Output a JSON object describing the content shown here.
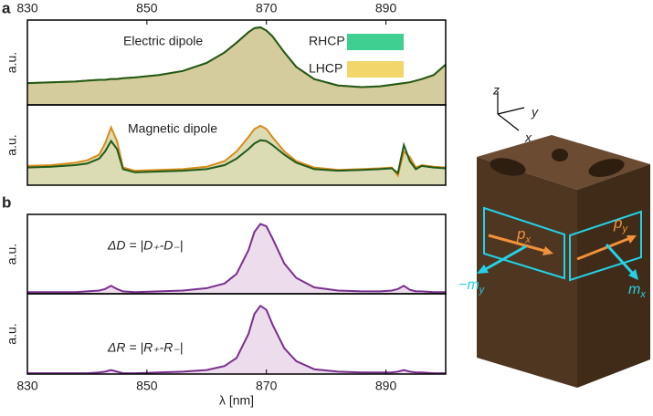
{
  "chart_data": [
    {
      "type": "line",
      "panel": "a",
      "annotation": "Electric dipole",
      "ylabel": "a.u.",
      "xaxis": "top",
      "x": [
        830,
        834,
        838,
        840,
        842,
        843,
        844,
        845,
        846,
        848,
        852,
        856,
        860,
        863,
        865,
        867,
        868,
        869,
        870,
        871,
        873,
        875,
        878,
        882,
        886,
        889,
        891,
        892,
        893,
        894,
        895,
        896,
        898,
        900
      ],
      "fill_color": "#d5cc9e",
      "series": [
        {
          "name": "LHCP",
          "color": "#f2d66a",
          "line_color": "#d98c1a",
          "values": [
            0.27,
            0.28,
            0.29,
            0.3,
            0.31,
            0.31,
            0.32,
            0.32,
            0.33,
            0.34,
            0.37,
            0.42,
            0.52,
            0.65,
            0.77,
            0.9,
            0.95,
            0.96,
            0.92,
            0.85,
            0.65,
            0.47,
            0.32,
            0.24,
            0.22,
            0.23,
            0.25,
            0.26,
            0.27,
            0.28,
            0.3,
            0.32,
            0.37,
            0.5
          ]
        },
        {
          "name": "RHCP",
          "color": "#3fcf90",
          "line_color": "#1f5a1a",
          "values": [
            0.27,
            0.28,
            0.29,
            0.3,
            0.31,
            0.31,
            0.32,
            0.32,
            0.33,
            0.34,
            0.37,
            0.42,
            0.52,
            0.65,
            0.77,
            0.9,
            0.95,
            0.96,
            0.92,
            0.85,
            0.65,
            0.47,
            0.32,
            0.24,
            0.22,
            0.23,
            0.25,
            0.26,
            0.27,
            0.28,
            0.3,
            0.32,
            0.37,
            0.5
          ]
        }
      ],
      "xlim": [
        830,
        900
      ],
      "ylim": [
        0,
        1.05
      ],
      "xticks": [
        830,
        850,
        870,
        890
      ]
    },
    {
      "type": "line",
      "annotation": "Magnetic dipole",
      "ylabel": "a.u.",
      "x": [
        830,
        834,
        838,
        840,
        842,
        843,
        844,
        845,
        846,
        848,
        852,
        856,
        860,
        863,
        865,
        867,
        868,
        869,
        870,
        871,
        873,
        875,
        878,
        882,
        886,
        889,
        891,
        892,
        893,
        894,
        895,
        896,
        898,
        900
      ],
      "fill_color": "#dcdcb4",
      "series": [
        {
          "line_color": "#d98c1a",
          "values": [
            0.24,
            0.25,
            0.28,
            0.31,
            0.38,
            0.52,
            0.72,
            0.55,
            0.22,
            0.18,
            0.19,
            0.2,
            0.23,
            0.3,
            0.42,
            0.6,
            0.7,
            0.74,
            0.7,
            0.6,
            0.42,
            0.3,
            0.22,
            0.19,
            0.2,
            0.21,
            0.22,
            0.12,
            0.42,
            0.35,
            0.22,
            0.25,
            0.23,
            0.22
          ]
        },
        {
          "line_color": "#1f5a1a",
          "values": [
            0.22,
            0.23,
            0.25,
            0.27,
            0.33,
            0.42,
            0.55,
            0.45,
            0.2,
            0.16,
            0.17,
            0.18,
            0.2,
            0.25,
            0.33,
            0.45,
            0.52,
            0.56,
            0.55,
            0.5,
            0.38,
            0.28,
            0.2,
            0.18,
            0.19,
            0.2,
            0.21,
            0.15,
            0.5,
            0.3,
            0.2,
            0.24,
            0.22,
            0.21
          ]
        }
      ],
      "xlim": [
        830,
        900
      ],
      "ylim": [
        0,
        1.0
      ]
    },
    {
      "type": "line",
      "panel": "b",
      "annotation": "ΔD = |D₊-D₋|",
      "ylabel": "a.u.",
      "x": [
        830,
        834,
        838,
        840,
        842,
        843,
        844,
        845,
        846,
        848,
        852,
        856,
        860,
        863,
        865,
        867,
        868,
        869,
        870,
        871,
        873,
        875,
        878,
        882,
        886,
        889,
        891,
        892,
        893,
        894,
        895,
        896,
        898,
        900
      ],
      "fill_color": "#ecdcec",
      "series": [
        {
          "line_color": "#7a2f8e",
          "values": [
            0.02,
            0.02,
            0.02,
            0.03,
            0.04,
            0.06,
            0.1,
            0.06,
            0.03,
            0.02,
            0.03,
            0.04,
            0.07,
            0.13,
            0.25,
            0.55,
            0.78,
            0.88,
            0.85,
            0.7,
            0.38,
            0.2,
            0.08,
            0.04,
            0.03,
            0.03,
            0.04,
            0.06,
            0.1,
            0.05,
            0.03,
            0.03,
            0.02,
            0.02
          ]
        }
      ],
      "xlim": [
        830,
        900
      ],
      "ylim": [
        0,
        1.0
      ]
    },
    {
      "type": "line",
      "annotation": "ΔR = |R₊-R₋|",
      "ylabel": "a.u.",
      "xaxis": "bottom",
      "xlabel": "λ [nm]",
      "x": [
        830,
        834,
        838,
        840,
        842,
        843,
        844,
        845,
        846,
        848,
        852,
        856,
        860,
        863,
        865,
        867,
        868,
        869,
        870,
        871,
        873,
        875,
        878,
        882,
        886,
        889,
        891,
        892,
        893,
        894,
        895,
        896,
        898,
        900
      ],
      "fill_color": "#ecdcec",
      "series": [
        {
          "line_color": "#7a2f8e",
          "values": [
            0.01,
            0.01,
            0.01,
            0.01,
            0.02,
            0.03,
            0.05,
            0.03,
            0.01,
            0.01,
            0.02,
            0.03,
            0.05,
            0.1,
            0.2,
            0.5,
            0.75,
            0.85,
            0.8,
            0.62,
            0.32,
            0.16,
            0.06,
            0.03,
            0.02,
            0.02,
            0.02,
            0.03,
            0.05,
            0.03,
            0.02,
            0.02,
            0.01,
            0.01
          ]
        }
      ],
      "xlim": [
        830,
        900
      ],
      "ylim": [
        0,
        1.0
      ],
      "xticks": [
        830,
        850,
        870,
        890
      ]
    }
  ],
  "diagram": {
    "axes": {
      "z": "z",
      "y": "y",
      "x": "x"
    },
    "labels": {
      "px": {
        "main": "p",
        "sub": "x"
      },
      "py": {
        "main": "p",
        "sub": "y"
      },
      "my": {
        "main": "−m",
        "sub": "y"
      },
      "mx": {
        "main": "m",
        "sub": "x"
      }
    }
  }
}
